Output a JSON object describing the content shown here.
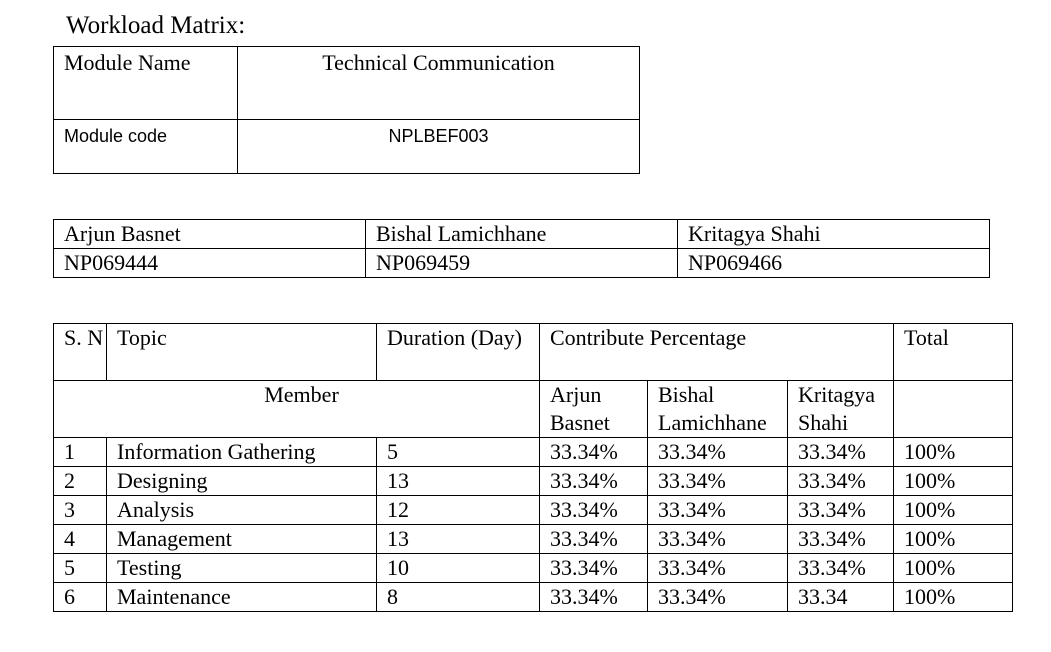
{
  "title": "Workload Matrix:",
  "module": {
    "name_label": "Module Name",
    "name_value": "Technical Communication",
    "code_label": "Module code",
    "code_value": "NPLBEF003"
  },
  "members": [
    {
      "name": "Arjun Basnet",
      "id": "NP069444"
    },
    {
      "name": "Bishal Lamichhane",
      "id": "NP069459"
    },
    {
      "name": "Kritagya Shahi",
      "id": "NP069466"
    }
  ],
  "workload": {
    "headers": {
      "sn": "S. N",
      "topic": "Topic",
      "duration": "Duration (Day)",
      "contribute": "Contribute Percentage",
      "total": "Total",
      "member": "Member",
      "member1": "Arjun Basnet",
      "member2": "Bishal Lamichhane",
      "member3": "Kritagya Shahi"
    },
    "rows": [
      {
        "sn": "1",
        "topic": "Information Gathering",
        "duration": "5",
        "p1": "33.34%",
        "p2": "33.34%",
        "p3": "33.34%",
        "total": "100%"
      },
      {
        "sn": "2",
        "topic": "Designing",
        "duration": "13",
        "p1": "33.34%",
        "p2": "33.34%",
        "p3": "33.34%",
        "total": "100%"
      },
      {
        "sn": "3",
        "topic": "Analysis",
        "duration": "12",
        "p1": "33.34%",
        "p2": "33.34%",
        "p3": "33.34%",
        "total": "100%"
      },
      {
        "sn": "4",
        "topic": "Management",
        "duration": "13",
        "p1": "33.34%",
        "p2": "33.34%",
        "p3": "33.34%",
        "total": "100%"
      },
      {
        "sn": "5",
        "topic": "Testing",
        "duration": "10",
        "p1": "33.34%",
        "p2": "33.34%",
        "p3": "33.34%",
        "total": "100%"
      },
      {
        "sn": "6",
        "topic": "Maintenance",
        "duration": "8",
        "p1": "33.34%",
        "p2": "33.34%",
        "p3": "33.34",
        "total": "100%"
      }
    ]
  }
}
